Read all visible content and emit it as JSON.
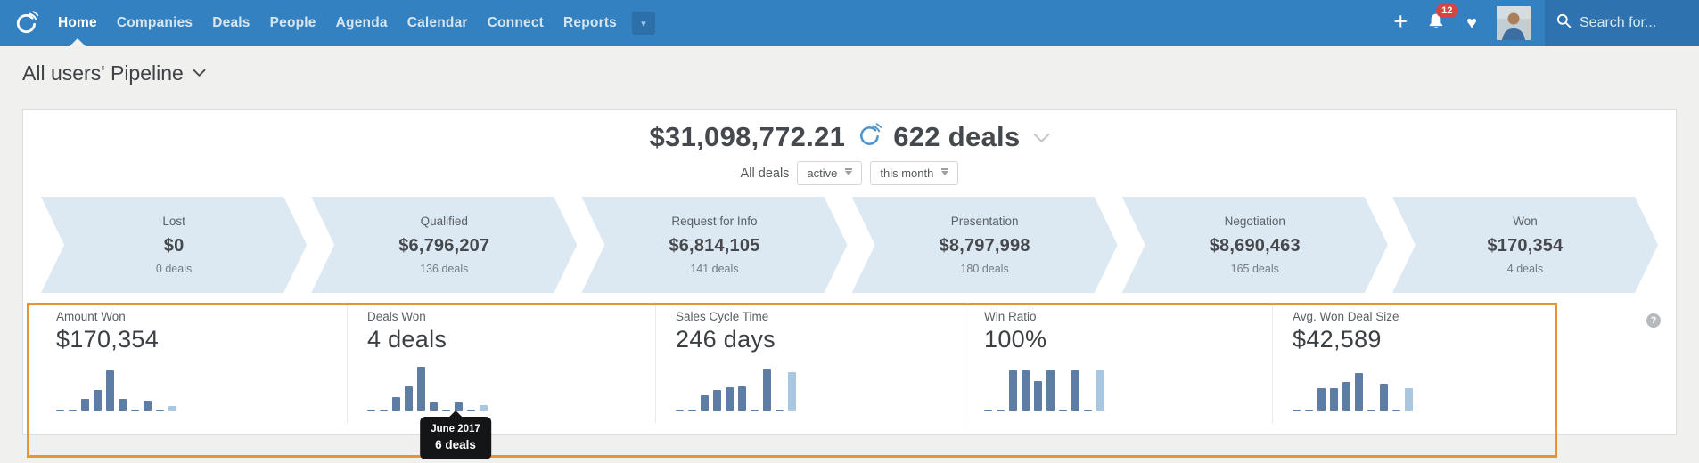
{
  "nav": {
    "items": [
      {
        "label": "Home",
        "active": true
      },
      {
        "label": "Companies",
        "active": false
      },
      {
        "label": "Deals",
        "active": false
      },
      {
        "label": "People",
        "active": false
      },
      {
        "label": "Agenda",
        "active": false
      },
      {
        "label": "Calendar",
        "active": false
      },
      {
        "label": "Connect",
        "active": false
      },
      {
        "label": "Reports",
        "active": false
      }
    ],
    "notifications_count": "12",
    "search_placeholder": "Search for..."
  },
  "page": {
    "title": "All users' Pipeline"
  },
  "summary": {
    "total_value": "$31,098,772.21",
    "deals_count": "622 deals"
  },
  "filters": {
    "label": "All deals",
    "status_value": "active",
    "period_value": "this month"
  },
  "funnel": {
    "stages": [
      {
        "name": "Lost",
        "value": "$0",
        "deals": "0 deals"
      },
      {
        "name": "Qualified",
        "value": "$6,796,207",
        "deals": "136 deals"
      },
      {
        "name": "Request for Info",
        "value": "$6,814,105",
        "deals": "141 deals"
      },
      {
        "name": "Presentation",
        "value": "$8,797,998",
        "deals": "180 deals"
      },
      {
        "name": "Negotiation",
        "value": "$8,690,463",
        "deals": "165 deals"
      },
      {
        "name": "Won",
        "value": "$170,354",
        "deals": "4 deals"
      }
    ]
  },
  "kpis": [
    {
      "label": "Amount Won",
      "value": "$170,354",
      "bars": [
        2,
        2,
        14,
        24,
        46,
        14,
        2,
        12,
        2,
        6
      ]
    },
    {
      "label": "Deals Won",
      "value": "4 deals",
      "bars": [
        2,
        2,
        16,
        28,
        50,
        10,
        2,
        10,
        2,
        7
      ]
    },
    {
      "label": "Sales Cycle Time",
      "value": "246 days",
      "bars": [
        2,
        2,
        18,
        24,
        27,
        28,
        2,
        48,
        2,
        44
      ]
    },
    {
      "label": "Win Ratio",
      "value": "100%",
      "bars": [
        2,
        2,
        46,
        46,
        34,
        46,
        2,
        46,
        2,
        46
      ]
    },
    {
      "label": "Avg. Won Deal Size",
      "value": "$42,589",
      "bars": [
        2,
        2,
        26,
        26,
        33,
        43,
        2,
        31,
        2,
        26
      ]
    }
  ],
  "chart_data": {
    "type": "bar",
    "note": "Monthly trend sparklines per KPI; last bar (current month) highlighted light blue",
    "series": [
      {
        "name": "Amount Won",
        "values": [
          2,
          2,
          14,
          24,
          46,
          14,
          2,
          12,
          2,
          6
        ]
      },
      {
        "name": "Deals Won",
        "values": [
          2,
          2,
          16,
          28,
          50,
          10,
          2,
          10,
          2,
          7
        ]
      },
      {
        "name": "Sales Cycle Time",
        "values": [
          2,
          2,
          18,
          24,
          27,
          28,
          2,
          48,
          2,
          44
        ]
      },
      {
        "name": "Win Ratio",
        "values": [
          2,
          2,
          46,
          46,
          34,
          46,
          2,
          46,
          2,
          46
        ]
      },
      {
        "name": "Avg. Won Deal Size",
        "values": [
          2,
          2,
          26,
          26,
          33,
          43,
          2,
          31,
          2,
          26
        ]
      }
    ]
  },
  "tooltip": {
    "title": "June 2017",
    "value": "6 deals"
  },
  "help_glyph": "?",
  "icons": {
    "plus": "+",
    "heart": "♥",
    "more-caret": "▾"
  },
  "colors": {
    "nav_blue": "#3481c1",
    "nav_search_blue": "#2e73b0",
    "badge_red": "#d84343",
    "funnel_fill": "#dde9f2",
    "bar_dark": "#5e7da4",
    "bar_light": "#a9c7e0",
    "highlight_orange": "#e79433",
    "tooltip_black": "#141517"
  }
}
